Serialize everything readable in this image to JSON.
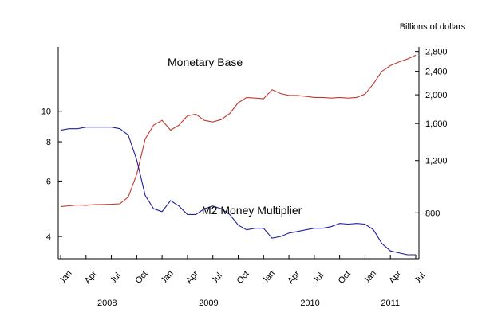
{
  "chart_data": {
    "type": "line",
    "title": "",
    "unit_label": "Billions of dollars",
    "x_tick_labels": [
      "Jan",
      "Apr",
      "Jul",
      "Oct",
      "Jan",
      "Apr",
      "Jul",
      "Oct",
      "Jan",
      "Apr",
      "Jul",
      "Oct",
      "Jan",
      "Apr",
      "Jul"
    ],
    "year_labels": [
      "2008",
      "2009",
      "2010",
      "2011"
    ],
    "left_axis": {
      "scale": "log",
      "ticks": [
        4,
        6,
        8,
        10
      ],
      "tick_labels": [
        "4",
        "6",
        "8",
        "10"
      ],
      "range": [
        3.4,
        16
      ]
    },
    "right_axis": {
      "scale": "log",
      "ticks": [
        800,
        1200,
        1600,
        2000,
        2400,
        2800
      ],
      "tick_labels": [
        "800",
        "1,200",
        "1,600",
        "2,000",
        "2,400",
        "2,800"
      ],
      "range": [
        560,
        2900
      ]
    },
    "series": [
      {
        "name": "Monetary Base",
        "axis": "right",
        "color": "#c0392b",
        "x": [
          "2008-01",
          "2008-02",
          "2008-03",
          "2008-04",
          "2008-05",
          "2008-06",
          "2008-07",
          "2008-08",
          "2008-09",
          "2008-10",
          "2008-11",
          "2008-12",
          "2009-01",
          "2009-02",
          "2009-03",
          "2009-04",
          "2009-05",
          "2009-06",
          "2009-07",
          "2009-08",
          "2009-09",
          "2009-10",
          "2009-11",
          "2009-12",
          "2010-01",
          "2010-02",
          "2010-03",
          "2010-04",
          "2010-05",
          "2010-06",
          "2010-07",
          "2010-08",
          "2010-09",
          "2010-10",
          "2010-11",
          "2010-12",
          "2011-01",
          "2011-02",
          "2011-03",
          "2011-04",
          "2011-05",
          "2011-06",
          "2011-07"
        ],
        "values": [
          840,
          845,
          850,
          848,
          852,
          853,
          855,
          858,
          905,
          1080,
          1420,
          1580,
          1640,
          1520,
          1580,
          1700,
          1720,
          1640,
          1620,
          1650,
          1730,
          1880,
          1960,
          1950,
          1940,
          2080,
          2020,
          1990,
          1990,
          1975,
          1960,
          1960,
          1950,
          1960,
          1950,
          1960,
          2010,
          2180,
          2400,
          2510,
          2580,
          2640,
          2720
        ]
      },
      {
        "name": "M2 Money Multiplier",
        "axis": "left",
        "color": "#1f1f9e",
        "x": [
          "2008-01",
          "2008-02",
          "2008-03",
          "2008-04",
          "2008-05",
          "2008-06",
          "2008-07",
          "2008-08",
          "2008-09",
          "2008-10",
          "2008-11",
          "2008-12",
          "2009-01",
          "2009-02",
          "2009-03",
          "2009-04",
          "2009-05",
          "2009-06",
          "2009-07",
          "2009-08",
          "2009-09",
          "2009-10",
          "2009-11",
          "2009-12",
          "2010-01",
          "2010-02",
          "2010-03",
          "2010-04",
          "2010-05",
          "2010-06",
          "2010-07",
          "2010-08",
          "2010-09",
          "2010-10",
          "2010-11",
          "2010-12",
          "2011-01",
          "2011-02",
          "2011-03",
          "2011-04",
          "2011-05",
          "2011-06",
          "2011-07"
        ],
        "values": [
          8.7,
          8.8,
          8.8,
          8.9,
          8.9,
          8.9,
          8.9,
          8.8,
          8.4,
          7.0,
          5.4,
          4.9,
          4.8,
          5.2,
          5.0,
          4.7,
          4.7,
          4.9,
          5.0,
          4.9,
          4.7,
          4.35,
          4.2,
          4.25,
          4.25,
          3.95,
          4.0,
          4.1,
          4.15,
          4.2,
          4.25,
          4.25,
          4.3,
          4.4,
          4.38,
          4.4,
          4.38,
          4.2,
          3.8,
          3.6,
          3.55,
          3.5,
          3.5
        ]
      }
    ],
    "annotations": [
      {
        "text": "Monetary Base",
        "series": "Monetary Base"
      },
      {
        "text": "M2 Money Multiplier",
        "series": "M2 Money Multiplier"
      }
    ],
    "grid": false,
    "legend": "none"
  }
}
